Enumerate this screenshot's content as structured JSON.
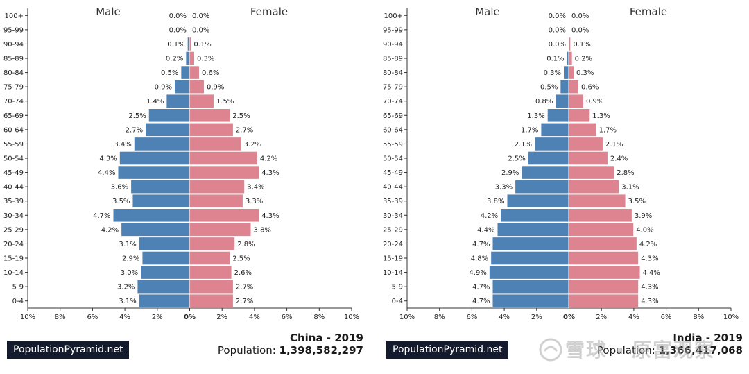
{
  "colors": {
    "male": "#4e81b4",
    "female": "#de8390",
    "axis": "#333333"
  },
  "brand_label": "PopulationPyramid.net",
  "watermark": {
    "text": "雪球 · 原富观察",
    "icon": "snowball-logo-icon"
  },
  "chart_data": [
    {
      "type": "bar",
      "orientation": "horizontal-pyramid",
      "title": "China - 2019",
      "population_label": "Population:",
      "population_value": "1,398,582,297",
      "male_label": "Male",
      "female_label": "Female",
      "xlim": [
        -10,
        10
      ],
      "x_ticks": [
        "10%",
        "8%",
        "6%",
        "4%",
        "2%",
        "0%",
        "2%",
        "4%",
        "6%",
        "8%",
        "10%"
      ],
      "categories": [
        "100+",
        "95-99",
        "90-94",
        "85-89",
        "80-84",
        "75-79",
        "70-74",
        "65-69",
        "60-64",
        "55-59",
        "50-54",
        "45-49",
        "40-44",
        "35-39",
        "30-34",
        "25-29",
        "20-24",
        "15-19",
        "10-14",
        "5-9",
        "0-4"
      ],
      "series": [
        {
          "name": "Male",
          "values": [
            0.0,
            0.0,
            0.1,
            0.2,
            0.5,
            0.9,
            1.4,
            2.5,
            2.7,
            3.4,
            4.3,
            4.4,
            3.6,
            3.5,
            4.7,
            4.2,
            3.1,
            2.9,
            3.0,
            3.2,
            3.1
          ],
          "labels": [
            "0.0%",
            "0.0%",
            "0.1%",
            "0.2%",
            "0.5%",
            "0.9%",
            "1.4%",
            "2.5%",
            "2.7%",
            "3.4%",
            "4.3%",
            "4.4%",
            "3.6%",
            "3.5%",
            "4.7%",
            "4.2%",
            "3.1%",
            "2.9%",
            "3.0%",
            "3.2%",
            "3.1%"
          ]
        },
        {
          "name": "Female",
          "values": [
            0.0,
            0.0,
            0.1,
            0.3,
            0.6,
            0.9,
            1.5,
            2.5,
            2.7,
            3.2,
            4.2,
            4.3,
            3.4,
            3.3,
            4.3,
            3.8,
            2.8,
            2.5,
            2.6,
            2.7,
            2.7
          ],
          "labels": [
            "0.0%",
            "0.0%",
            "0.1%",
            "0.3%",
            "0.6%",
            "0.9%",
            "1.5%",
            "2.5%",
            "2.7%",
            "3.2%",
            "4.2%",
            "4.3%",
            "3.4%",
            "3.3%",
            "4.3%",
            "3.8%",
            "2.8%",
            "2.5%",
            "2.6%",
            "2.7%",
            "2.7%"
          ]
        }
      ]
    },
    {
      "type": "bar",
      "orientation": "horizontal-pyramid",
      "title": "India - 2019",
      "population_label": "Population:",
      "population_value": "1,366,417,068",
      "male_label": "Male",
      "female_label": "Female",
      "xlim": [
        -10,
        10
      ],
      "x_ticks": [
        "10%",
        "8%",
        "6%",
        "4%",
        "2%",
        "0%",
        "2%",
        "4%",
        "6%",
        "8%",
        "10%"
      ],
      "categories": [
        "100+",
        "95-99",
        "90-94",
        "85-89",
        "80-84",
        "75-79",
        "70-74",
        "65-69",
        "60-64",
        "55-59",
        "50-54",
        "45-49",
        "40-44",
        "35-39",
        "30-34",
        "25-29",
        "20-24",
        "15-19",
        "10-14",
        "5-9",
        "0-4"
      ],
      "series": [
        {
          "name": "Male",
          "values": [
            0.0,
            0.0,
            0.0,
            0.1,
            0.3,
            0.5,
            0.8,
            1.3,
            1.7,
            2.1,
            2.5,
            2.9,
            3.3,
            3.8,
            4.2,
            4.4,
            4.7,
            4.8,
            4.9,
            4.7,
            4.7
          ],
          "labels": [
            "0.0%",
            "0.0%",
            "0.0%",
            "0.1%",
            "0.3%",
            "0.5%",
            "0.8%",
            "1.3%",
            "1.7%",
            "2.1%",
            "2.5%",
            "2.9%",
            "3.3%",
            "3.8%",
            "4.2%",
            "4.4%",
            "4.7%",
            "4.8%",
            "4.9%",
            "4.7%",
            "4.7%"
          ]
        },
        {
          "name": "Female",
          "values": [
            0.0,
            0.0,
            0.1,
            0.2,
            0.3,
            0.6,
            0.9,
            1.3,
            1.7,
            2.1,
            2.4,
            2.8,
            3.1,
            3.5,
            3.9,
            4.0,
            4.2,
            4.3,
            4.4,
            4.3,
            4.3
          ],
          "labels": [
            "0.0%",
            "0.0%",
            "0.1%",
            "0.2%",
            "0.3%",
            "0.6%",
            "0.9%",
            "1.3%",
            "1.7%",
            "2.1%",
            "2.4%",
            "2.8%",
            "3.1%",
            "3.5%",
            "3.9%",
            "4.0%",
            "4.2%",
            "4.3%",
            "4.4%",
            "4.3%",
            "4.3%"
          ]
        }
      ]
    }
  ]
}
